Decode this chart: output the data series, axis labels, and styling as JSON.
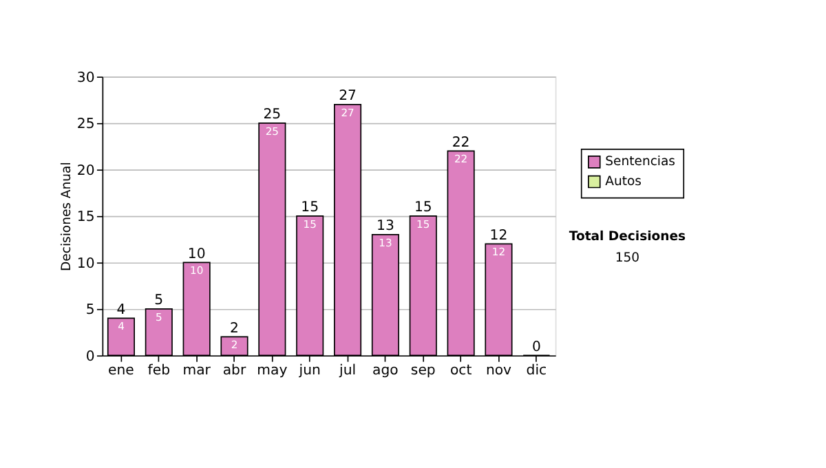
{
  "chart_data": {
    "type": "bar",
    "ylabel": "Decisiones Anual",
    "categories": [
      "ene",
      "feb",
      "mar",
      "abr",
      "may",
      "jun",
      "jul",
      "ago",
      "sep",
      "oct",
      "nov",
      "dic"
    ],
    "series": [
      {
        "name": "Sentencias",
        "color": "#dd7fbf",
        "values": [
          4,
          5,
          10,
          2,
          25,
          15,
          27,
          13,
          15,
          22,
          12,
          0
        ],
        "value_labels": [
          "4",
          "5",
          "10",
          "2",
          "25",
          "15",
          "27",
          "13",
          "15",
          "22",
          "12",
          null
        ]
      },
      {
        "name": "Autos",
        "color": "#d9ef9f",
        "values": [
          null,
          null,
          null,
          null,
          null,
          null,
          null,
          null,
          null,
          null,
          null,
          null
        ]
      }
    ],
    "totals": [
      "4",
      "5",
      "10",
      "2",
      "25",
      "15",
      "27",
      "13",
      "15",
      "22",
      "12",
      "0"
    ],
    "ylim": [
      0,
      30
    ],
    "yticks": [
      0,
      5,
      10,
      15,
      20,
      25,
      30
    ],
    "grid": "y",
    "legend": "right",
    "annotations": [
      "Total Decisiones",
      "150"
    ]
  }
}
